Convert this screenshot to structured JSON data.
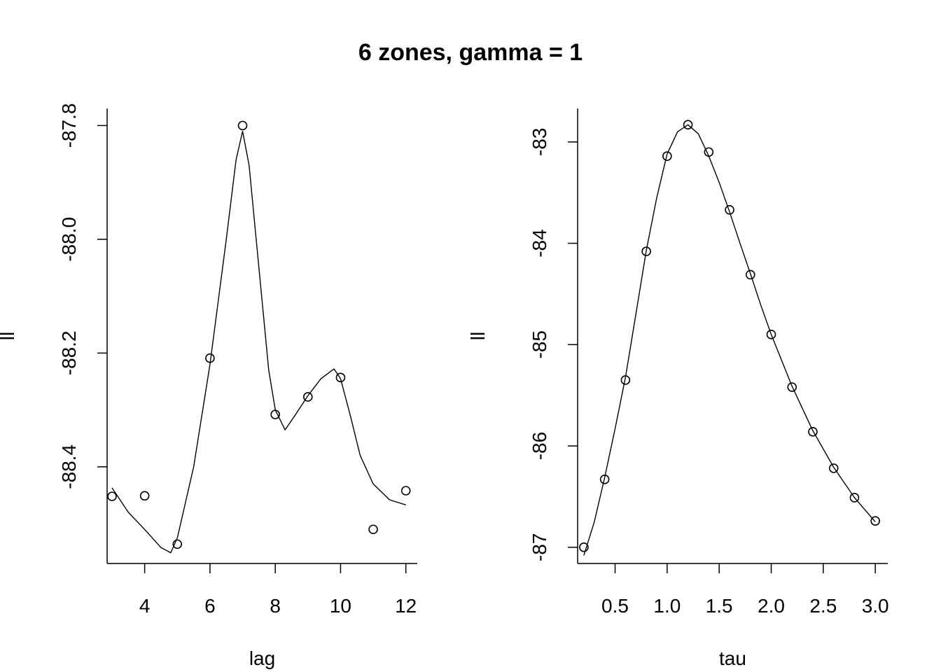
{
  "title": "6 zones, gamma = 1",
  "chart_data": [
    {
      "type": "scatter",
      "xlabel": "lag",
      "ylabel": "ll",
      "xlim": [
        2.85,
        12.35
      ],
      "ylim": [
        -88.57,
        -87.77
      ],
      "xticks": [
        4,
        6,
        8,
        10,
        12
      ],
      "yticks": [
        -88.4,
        -88.2,
        -88.0,
        -87.8
      ],
      "ytick_labels": [
        "-88.4",
        "-88.2",
        "-88.0",
        "-87.8"
      ],
      "points": {
        "x": [
          3,
          4,
          5,
          6,
          7,
          8,
          9,
          10,
          11,
          12
        ],
        "y": [
          -88.452,
          -88.451,
          -88.536,
          -88.209,
          -87.8,
          -88.308,
          -88.277,
          -88.243,
          -88.51,
          -88.442
        ]
      },
      "smooth_line": {
        "x": [
          3.0,
          3.5,
          4.0,
          4.5,
          4.8,
          5.0,
          5.5,
          6.0,
          6.5,
          6.8,
          7.0,
          7.2,
          7.5,
          7.8,
          8.0,
          8.3,
          8.6,
          9.0,
          9.4,
          9.8,
          10.0,
          10.3,
          10.6,
          11.0,
          11.5,
          12.0
        ],
        "y": [
          -88.437,
          -88.48,
          -88.51,
          -88.542,
          -88.551,
          -88.525,
          -88.4,
          -88.22,
          -88.0,
          -87.86,
          -87.81,
          -87.87,
          -88.05,
          -88.23,
          -88.3,
          -88.335,
          -88.31,
          -88.275,
          -88.245,
          -88.228,
          -88.245,
          -88.31,
          -88.38,
          -88.43,
          -88.458,
          -88.467
        ]
      }
    },
    {
      "type": "scatter",
      "xlabel": "tau",
      "ylabel": "ll",
      "xlim": [
        0.14,
        3.12
      ],
      "ylim": [
        -87.16,
        -82.67
      ],
      "xticks": [
        0.5,
        1.0,
        1.5,
        2.0,
        2.5,
        3.0
      ],
      "xtick_labels": [
        "0.5",
        "1.0",
        "1.5",
        "2.0",
        "2.5",
        "3.0"
      ],
      "yticks": [
        -87,
        -86,
        -85,
        -84,
        -83
      ],
      "points": {
        "x": [
          0.2,
          0.4,
          0.6,
          0.8,
          1.0,
          1.2,
          1.4,
          1.6,
          1.8,
          2.0,
          2.2,
          2.4,
          2.6,
          2.8,
          3.0
        ],
        "y": [
          -87.0,
          -86.33,
          -85.35,
          -84.08,
          -83.14,
          -82.83,
          -83.1,
          -83.67,
          -84.31,
          -84.9,
          -85.42,
          -85.86,
          -86.22,
          -86.51,
          -86.74
        ]
      },
      "smooth_line": {
        "x": [
          0.2,
          0.3,
          0.4,
          0.5,
          0.6,
          0.7,
          0.8,
          0.9,
          1.0,
          1.1,
          1.2,
          1.3,
          1.4,
          1.5,
          1.6,
          1.7,
          1.8,
          1.9,
          2.0,
          2.2,
          2.4,
          2.6,
          2.8,
          3.0
        ],
        "y": [
          -87.08,
          -86.75,
          -86.31,
          -85.83,
          -85.32,
          -84.7,
          -84.07,
          -83.55,
          -83.12,
          -82.9,
          -82.83,
          -82.92,
          -83.14,
          -83.4,
          -83.69,
          -84.0,
          -84.3,
          -84.61,
          -84.9,
          -85.41,
          -85.85,
          -86.21,
          -86.51,
          -86.75
        ]
      }
    }
  ]
}
